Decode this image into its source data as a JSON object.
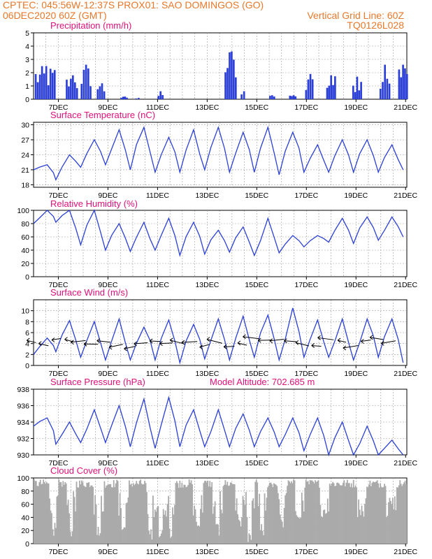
{
  "header": {
    "line1_left": "CPTEC:   045:56W-12:37S   PROX01: SAO DOMINGOS (GO)",
    "line2_left": "06DEC2020 60Z (GMT)",
    "line2_right": "Vertical Grid Line: 60Z",
    "line3_right": "TQ0126L028"
  },
  "colors": {
    "header": "#e8782a",
    "titles": "#e0107a",
    "line": "#2b3fd6",
    "cloud": "#aaaaaa",
    "grid": "#9a9a9a"
  },
  "x_tick_labels": [
    "7DEC",
    "9DEC",
    "11DEC",
    "13DEC",
    "15DEC",
    "17DEC",
    "19DEC",
    "21DEC"
  ],
  "chart_data": [
    {
      "type": "bar",
      "title": "Precipitation (mm/h)",
      "ylim": [
        0,
        5
      ],
      "yticks": [
        0,
        1,
        2,
        3,
        4,
        5
      ],
      "x_days": [
        6,
        7,
        8,
        9,
        10,
        11,
        12,
        13,
        14,
        15,
        16,
        17,
        18,
        19,
        20,
        21
      ],
      "bursts": [
        {
          "day": 6.05,
          "width": 0.85,
          "peak": 2.5
        },
        {
          "day": 7.3,
          "width": 0.5,
          "peak": 1.8
        },
        {
          "day": 7.9,
          "width": 0.45,
          "peak": 2.6
        },
        {
          "day": 8.55,
          "width": 0.35,
          "peak": 1.2
        },
        {
          "day": 9.5,
          "width": 0.3,
          "peak": 0.2
        },
        {
          "day": 10.1,
          "width": 0.2,
          "peak": 0.1
        },
        {
          "day": 11.0,
          "width": 0.25,
          "peak": 0.6
        },
        {
          "day": 13.7,
          "width": 0.5,
          "peak": 3.6
        },
        {
          "day": 14.35,
          "width": 0.2,
          "peak": 0.6
        },
        {
          "day": 15.5,
          "width": 0.25,
          "peak": 0.3
        },
        {
          "day": 16.3,
          "width": 0.3,
          "peak": 0.3
        },
        {
          "day": 16.95,
          "width": 0.35,
          "peak": 1.9
        },
        {
          "day": 17.8,
          "width": 0.4,
          "peak": 1.8
        },
        {
          "day": 18.85,
          "width": 0.4,
          "peak": 1.7
        },
        {
          "day": 19.95,
          "width": 0.45,
          "peak": 2.6
        },
        {
          "day": 20.7,
          "width": 0.4,
          "peak": 2.6
        }
      ]
    },
    {
      "type": "line",
      "title": "Surface Temperature (nC)",
      "ylim": [
        17.5,
        30.5
      ],
      "yticks": [
        18,
        21,
        24,
        27,
        30
      ],
      "min_max_by_day": [
        {
          "day": 6.0,
          "min": 21.0,
          "max": 22.0
        },
        {
          "day": 6.9,
          "min": 19.0,
          "max": 24.0
        },
        {
          "day": 7.9,
          "min": 21.5,
          "max": 27.0
        },
        {
          "day": 8.9,
          "min": 22.0,
          "max": 29.0
        },
        {
          "day": 9.9,
          "min": 21.0,
          "max": 29.5
        },
        {
          "day": 10.9,
          "min": 20.5,
          "max": 27.5
        },
        {
          "day": 11.9,
          "min": 20.5,
          "max": 29.0
        },
        {
          "day": 12.9,
          "min": 21.0,
          "max": 29.5
        },
        {
          "day": 13.9,
          "min": 20.5,
          "max": 28.5
        },
        {
          "day": 14.9,
          "min": 20.5,
          "max": 29.5
        },
        {
          "day": 15.9,
          "min": 20.0,
          "max": 28.5
        },
        {
          "day": 16.9,
          "min": 20.5,
          "max": 26.0
        },
        {
          "day": 17.9,
          "min": 20.5,
          "max": 27.0
        },
        {
          "day": 18.9,
          "min": 20.5,
          "max": 27.0
        },
        {
          "day": 19.9,
          "min": 20.5,
          "max": 26.0
        },
        {
          "day": 20.9,
          "min": 21.0,
          "max": 26.5
        }
      ]
    },
    {
      "type": "line",
      "title": "Relative Humidity (%)",
      "ylim": [
        0,
        100
      ],
      "yticks": [
        0,
        20,
        40,
        60,
        80,
        100
      ],
      "min_max_by_day": [
        {
          "day": 6.0,
          "min": 80,
          "max": 100
        },
        {
          "day": 6.9,
          "min": 82,
          "max": 100
        },
        {
          "day": 7.9,
          "min": 48,
          "max": 100
        },
        {
          "day": 8.9,
          "min": 40,
          "max": 80
        },
        {
          "day": 9.9,
          "min": 38,
          "max": 82
        },
        {
          "day": 10.9,
          "min": 40,
          "max": 88
        },
        {
          "day": 11.9,
          "min": 32,
          "max": 82
        },
        {
          "day": 12.9,
          "min": 34,
          "max": 70
        },
        {
          "day": 13.9,
          "min": 37,
          "max": 75
        },
        {
          "day": 14.9,
          "min": 32,
          "max": 88
        },
        {
          "day": 15.9,
          "min": 36,
          "max": 62
        },
        {
          "day": 16.9,
          "min": 45,
          "max": 62
        },
        {
          "day": 17.9,
          "min": 52,
          "max": 88
        },
        {
          "day": 18.9,
          "min": 50,
          "max": 90
        },
        {
          "day": 19.9,
          "min": 55,
          "max": 90
        },
        {
          "day": 20.9,
          "min": 60,
          "max": 98
        }
      ]
    },
    {
      "type": "line",
      "title": "Surface Wind (m/s)",
      "ylim": [
        0,
        12
      ],
      "yticks": [
        0,
        2,
        4,
        6,
        8,
        10
      ],
      "min_max_by_day": [
        {
          "day": 6.0,
          "min": 2.0,
          "max": 5.0
        },
        {
          "day": 6.9,
          "min": 2.5,
          "max": 8.2
        },
        {
          "day": 7.9,
          "min": 1.5,
          "max": 8.0
        },
        {
          "day": 8.9,
          "min": 1.0,
          "max": 8.5
        },
        {
          "day": 9.9,
          "min": 1.0,
          "max": 7.0
        },
        {
          "day": 10.9,
          "min": 1.0,
          "max": 8.3
        },
        {
          "day": 11.9,
          "min": 0.5,
          "max": 7.5
        },
        {
          "day": 12.9,
          "min": 1.2,
          "max": 8.5
        },
        {
          "day": 13.9,
          "min": 1.0,
          "max": 9.0
        },
        {
          "day": 14.9,
          "min": 1.5,
          "max": 9.2
        },
        {
          "day": 15.9,
          "min": 1.0,
          "max": 10.5
        },
        {
          "day": 16.9,
          "min": 1.5,
          "max": 8.3
        },
        {
          "day": 17.9,
          "min": 1.5,
          "max": 8.5
        },
        {
          "day": 18.9,
          "min": 1.0,
          "max": 8.5
        },
        {
          "day": 19.9,
          "min": 1.5,
          "max": 8.5
        },
        {
          "day": 20.9,
          "min": 0.5,
          "max": 9.0
        }
      ]
    },
    {
      "type": "line",
      "title": "Surface Pressure (hPa)",
      "subtitle": "Model Altitude: 702.685 m",
      "ylim": [
        930,
        938
      ],
      "yticks": [
        930,
        932,
        934,
        936,
        938
      ],
      "min_max_by_day": [
        {
          "day": 6.0,
          "min": 933.5,
          "max": 934.5
        },
        {
          "day": 6.9,
          "min": 931.3,
          "max": 934.0
        },
        {
          "day": 7.9,
          "min": 931.5,
          "max": 935.5
        },
        {
          "day": 8.9,
          "min": 931.5,
          "max": 936.0
        },
        {
          "day": 9.9,
          "min": 931.0,
          "max": 936.8
        },
        {
          "day": 10.9,
          "min": 930.8,
          "max": 937.0
        },
        {
          "day": 11.9,
          "min": 931.0,
          "max": 935.5
        },
        {
          "day": 12.9,
          "min": 931.0,
          "max": 935.5
        },
        {
          "day": 13.9,
          "min": 931.0,
          "max": 935.0
        },
        {
          "day": 14.9,
          "min": 931.0,
          "max": 934.5
        },
        {
          "day": 15.9,
          "min": 931.0,
          "max": 934.5
        },
        {
          "day": 16.9,
          "min": 930.5,
          "max": 934.5
        },
        {
          "day": 17.9,
          "min": 930.0,
          "max": 934.0
        },
        {
          "day": 18.9,
          "min": 929.8,
          "max": 933.5
        },
        {
          "day": 19.9,
          "min": 929.8,
          "max": 931.8
        },
        {
          "day": 20.9,
          "min": 929.5,
          "max": 931.8
        }
      ]
    },
    {
      "type": "area",
      "title": "Cloud Cover (%)",
      "ylim": [
        0,
        100
      ],
      "yticks": [
        0,
        20,
        40,
        60,
        80,
        100
      ],
      "typical_range": [
        85,
        98
      ],
      "dips": [
        {
          "day": 6.8,
          "low": 12
        },
        {
          "day": 7.5,
          "low": 10
        },
        {
          "day": 8.6,
          "low": 12
        },
        {
          "day": 9.6,
          "low": 15
        },
        {
          "day": 10.7,
          "low": 5
        },
        {
          "day": 11.1,
          "low": 2
        },
        {
          "day": 11.5,
          "low": 8
        },
        {
          "day": 12.6,
          "low": 15
        },
        {
          "day": 13.4,
          "low": 12
        },
        {
          "day": 14.3,
          "low": 20
        },
        {
          "day": 14.7,
          "low": 0
        },
        {
          "day": 15.2,
          "low": 10
        },
        {
          "day": 16.0,
          "low": 18
        },
        {
          "day": 16.7,
          "low": 25
        },
        {
          "day": 17.7,
          "low": 35
        },
        {
          "day": 19.2,
          "low": 40
        },
        {
          "day": 20.4,
          "low": 55
        }
      ]
    }
  ]
}
